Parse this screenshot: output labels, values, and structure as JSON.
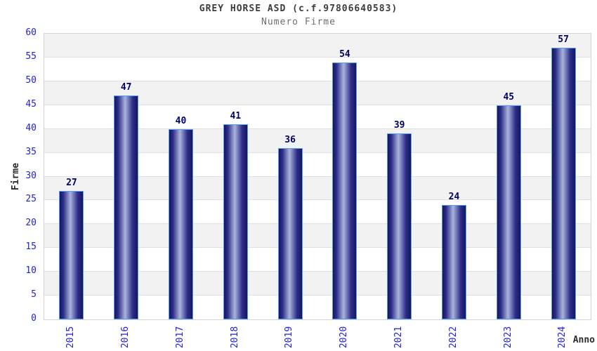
{
  "chart_data": {
    "type": "bar",
    "title": "GREY HORSE ASD (c.f.97806640583)",
    "subtitle": "Numero Firme",
    "xlabel": "Anno",
    "ylabel": "Firme",
    "categories": [
      "2015",
      "2016",
      "2017",
      "2018",
      "2019",
      "2020",
      "2021",
      "2022",
      "2023",
      "2024"
    ],
    "values": [
      27,
      47,
      40,
      41,
      36,
      54,
      39,
      24,
      45,
      57
    ],
    "ylim": [
      0,
      60
    ],
    "ytick_step": 5,
    "grid": "alternating-horizontal-bands",
    "legend": "none",
    "colors": {
      "bar_dark": "#15155e",
      "bar_mid": "#2e2e8a",
      "bar_highlight": "#a9b4dc",
      "bar_border": "#55a0f2",
      "tick_label": "#2222dd",
      "value_label": "#000066",
      "band_gray": "#f2f2f2",
      "grid_line": "#e0e0e0",
      "plot_border": "#d4d4d4",
      "title": "#3c3c3c",
      "subtitle": "#6e6e6e",
      "axis_title": "#2b2b2b"
    }
  }
}
